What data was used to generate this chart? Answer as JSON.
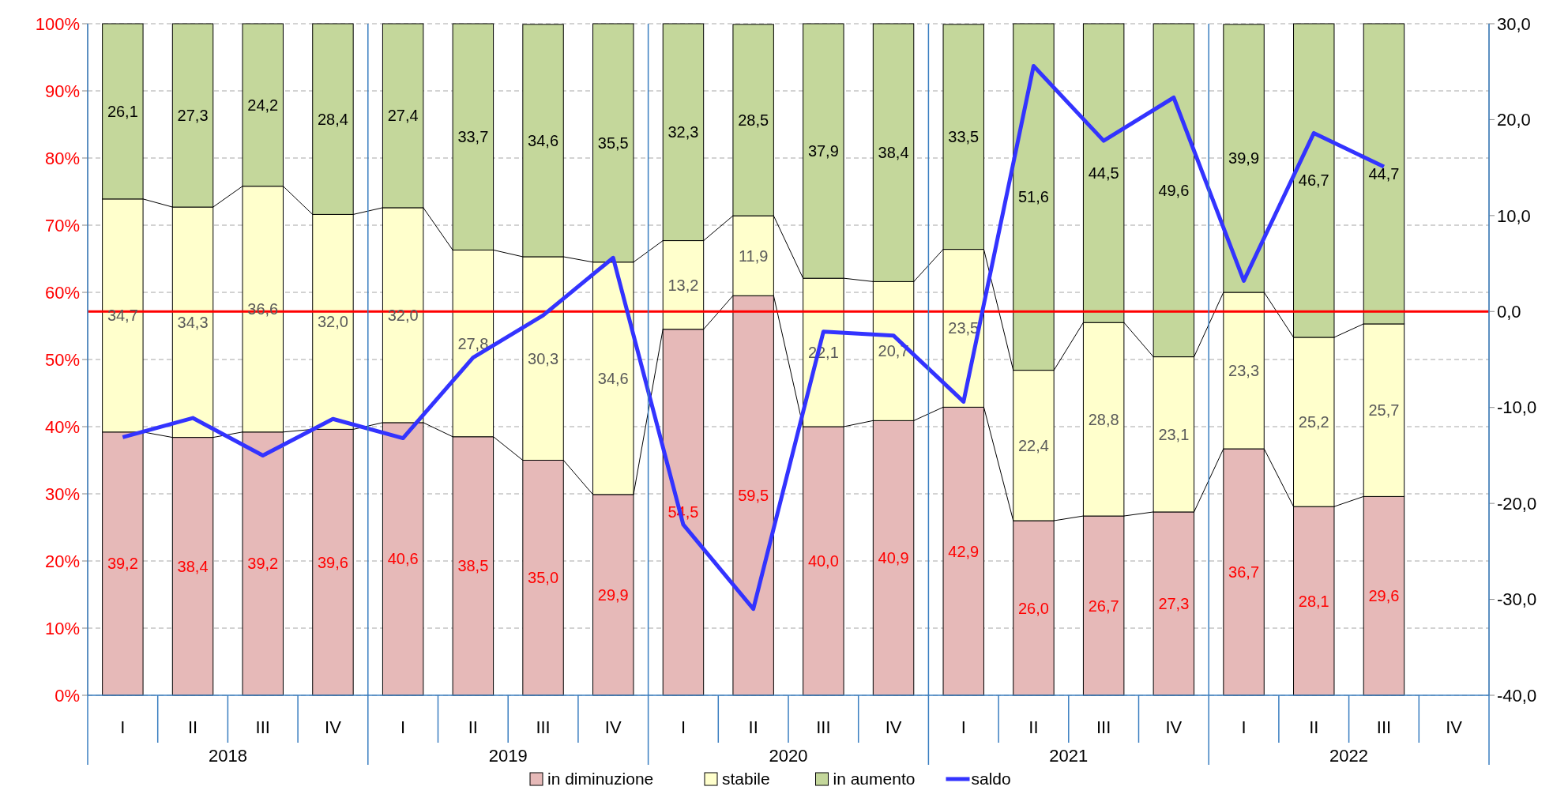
{
  "chart_data": {
    "type": "bar",
    "stacked": true,
    "categories": [
      "I",
      "II",
      "III",
      "IV",
      "I",
      "II",
      "III",
      "IV",
      "I",
      "II",
      "III",
      "IV",
      "I",
      "II",
      "III",
      "IV",
      "I",
      "II",
      "III",
      "IV"
    ],
    "annotations": [
      "2018",
      "2019",
      "2020",
      "2021",
      "2022"
    ],
    "series": [
      {
        "name": "in diminuzione",
        "color": "#e6b9b8",
        "values": [
          39.2,
          38.4,
          39.2,
          39.6,
          40.6,
          38.5,
          35.0,
          29.9,
          54.5,
          59.5,
          40.0,
          40.9,
          42.9,
          26.0,
          26.7,
          27.3,
          36.7,
          28.1,
          29.6,
          null
        ],
        "value_labels": [
          "39,2",
          "38,4",
          "39,2",
          "39,6",
          "40,6",
          "38,5",
          "35,0",
          "29,9",
          "54,5",
          "59,5",
          "40,0",
          "40,9",
          "42,9",
          "26,0",
          "26,7",
          "27,3",
          "36,7",
          "28,1",
          "29,6",
          null
        ]
      },
      {
        "name": "stabile",
        "color": "#ffffcc",
        "values": [
          34.7,
          34.3,
          36.6,
          32.0,
          32.0,
          27.8,
          30.3,
          34.6,
          13.2,
          11.9,
          22.1,
          20.7,
          23.5,
          22.4,
          28.8,
          23.1,
          23.3,
          25.2,
          25.7,
          null
        ],
        "value_labels": [
          "34,7",
          "34,3",
          "36,6",
          "32,0",
          "32,0",
          "27,8",
          "30,3",
          "34,6",
          "13,2",
          "11,9",
          "22,1",
          "20,7",
          "23,5",
          "22,4",
          "28,8",
          "23,1",
          "23,3",
          "25,2",
          "25,7",
          null
        ]
      },
      {
        "name": "in aumento",
        "color": "#c4d79b",
        "values": [
          26.1,
          27.3,
          24.2,
          28.4,
          27.4,
          33.7,
          34.6,
          35.5,
          32.3,
          28.5,
          37.9,
          38.4,
          33.5,
          51.6,
          44.5,
          49.6,
          39.9,
          46.7,
          44.7,
          null
        ],
        "value_labels": [
          "26,1",
          "27,3",
          "24,2",
          "28,4",
          "27,4",
          "33,7",
          "34,6",
          "35,5",
          "32,3",
          "28,5",
          "37,9",
          "38,4",
          "33,5",
          "51,6",
          "44,5",
          "49,6",
          "39,9",
          "46,7",
          "44,7",
          null
        ]
      },
      {
        "name": "saldo",
        "type": "line",
        "axis": "y2",
        "color": "#3333ff",
        "values": [
          -13.1,
          -11.1,
          -15.0,
          -11.2,
          -13.2,
          -4.8,
          -0.4,
          5.6,
          -22.2,
          -31.0,
          -2.1,
          -2.5,
          -9.4,
          25.6,
          17.8,
          22.3,
          3.2,
          18.6,
          15.1,
          null
        ]
      }
    ],
    "ylim": [
      0,
      100
    ],
    "yticks": [
      {
        "value": 0,
        "label": "0%"
      },
      {
        "value": 10,
        "label": "10%"
      },
      {
        "value": 20,
        "label": "20%"
      },
      {
        "value": 30,
        "label": "30%"
      },
      {
        "value": 40,
        "label": "40%"
      },
      {
        "value": 50,
        "label": "50%"
      },
      {
        "value": 60,
        "label": "60%"
      },
      {
        "value": 70,
        "label": "70%"
      },
      {
        "value": 80,
        "label": "80%"
      },
      {
        "value": 90,
        "label": "90%"
      },
      {
        "value": 100,
        "label": "100%"
      }
    ],
    "y2lim": [
      -40,
      30
    ],
    "y2ticks": [
      {
        "value": -40,
        "label": "-40,0"
      },
      {
        "value": -30,
        "label": "-30,0"
      },
      {
        "value": -20,
        "label": "-20,0"
      },
      {
        "value": -10,
        "label": "-10,0"
      },
      {
        "value": 0,
        "label": "0,0"
      },
      {
        "value": 10,
        "label": "10,0"
      },
      {
        "value": 20,
        "label": "20,0"
      },
      {
        "value": 30,
        "label": "30,0"
      }
    ],
    "ref_lines": [
      {
        "axis": "y2",
        "value": 0,
        "color": "#ff0000"
      }
    ],
    "grid": "y",
    "legend": "bottom",
    "marker": "none",
    "line_style": "solid"
  }
}
